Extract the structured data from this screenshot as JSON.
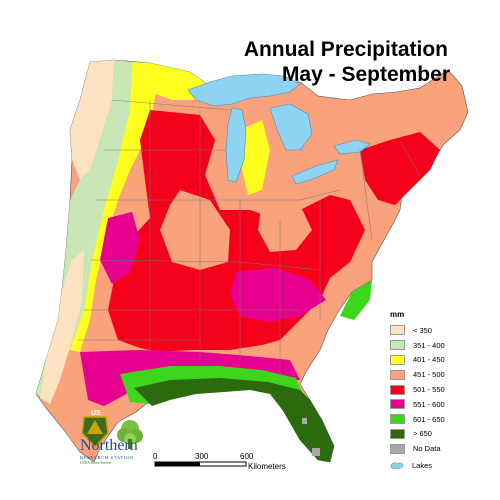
{
  "title": {
    "line1": "Annual Precipitation",
    "line2": "May - September"
  },
  "legend": {
    "heading": "mm",
    "items": [
      {
        "label": "< 350",
        "color": "#fbe3c1"
      },
      {
        "label": "351 - 400",
        "color": "#c9e6b6"
      },
      {
        "label": "401 - 450",
        "color": "#ffff1f"
      },
      {
        "label": "451 - 500",
        "color": "#f9a27c"
      },
      {
        "label": "501 - 550",
        "color": "#f5001a"
      },
      {
        "label": "551 - 600",
        "color": "#e7008f"
      },
      {
        "label": "601 - 650",
        "color": "#3ed61d"
      },
      {
        "label": "> 650",
        "color": "#2b6b0e"
      },
      {
        "label": "No Data",
        "color": "#a8a8a8"
      }
    ],
    "lakes_label": "Lakes",
    "lakes_color": "#8fd3f3"
  },
  "branding": {
    "name": "Northern",
    "subtitle": "RESEARCH STATION",
    "agency_line": "USDA Forest Service",
    "shield_text": "US"
  },
  "scale_bar": {
    "ticks": [
      "0",
      "300",
      "600"
    ],
    "unit": "Kilometers"
  }
}
